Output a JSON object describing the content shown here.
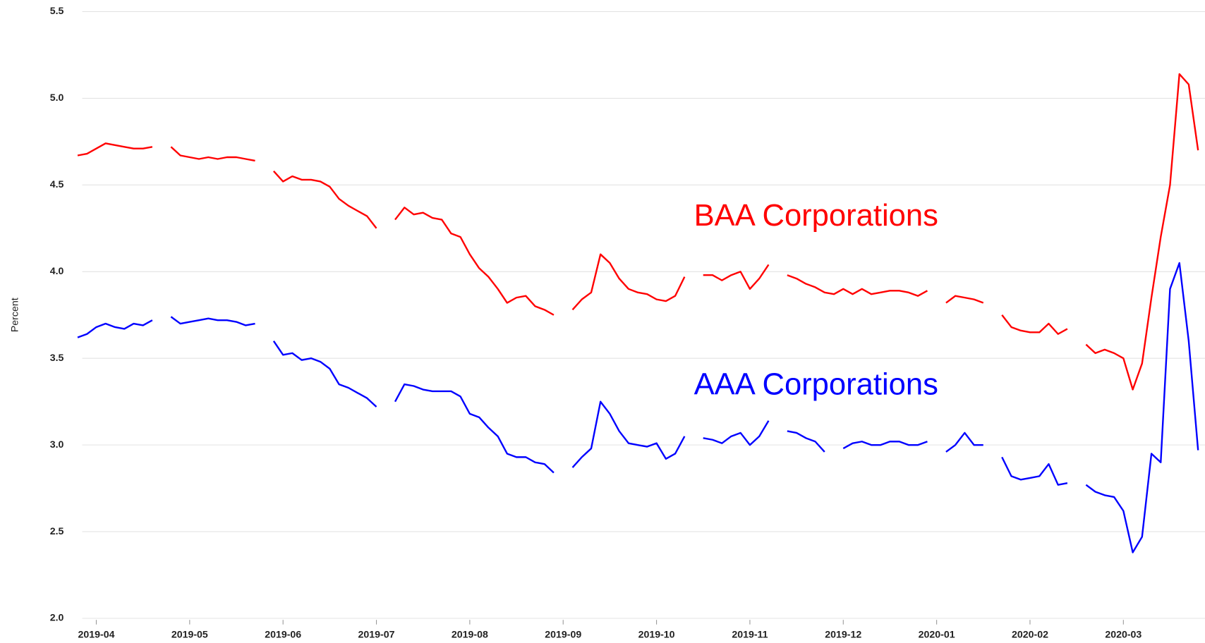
{
  "chart_data": {
    "type": "line",
    "y_label": "Percent",
    "categories": [
      null,
      null,
      "2019-04",
      null,
      null,
      null,
      null,
      null,
      null,
      null,
      null,
      null,
      "2019-05",
      null,
      null,
      null,
      null,
      null,
      null,
      null,
      null,
      null,
      "2019-06",
      null,
      null,
      null,
      null,
      null,
      null,
      null,
      null,
      null,
      "2019-07",
      null,
      null,
      null,
      null,
      null,
      null,
      null,
      null,
      null,
      "2019-08",
      null,
      null,
      null,
      null,
      null,
      null,
      null,
      null,
      null,
      "2019-09",
      null,
      null,
      null,
      null,
      null,
      null,
      null,
      null,
      null,
      "2019-10",
      null,
      null,
      null,
      null,
      null,
      null,
      null,
      null,
      null,
      "2019-11",
      null,
      null,
      null,
      null,
      null,
      null,
      null,
      null,
      null,
      "2019-12",
      null,
      null,
      null,
      null,
      null,
      null,
      null,
      null,
      null,
      "2020-01",
      null,
      null,
      null,
      null,
      null,
      null,
      null,
      null,
      null,
      "2020-02",
      null,
      null,
      null,
      null,
      null,
      null,
      null,
      null,
      null,
      "2020-03",
      null,
      null,
      null,
      null,
      null,
      null,
      null,
      null
    ],
    "series": [
      {
        "name": "BAA Corporations",
        "color": "#ff0000",
        "values": [
          4.67,
          4.68,
          4.71,
          4.74,
          4.73,
          4.72,
          4.71,
          4.71,
          4.72,
          null,
          4.72,
          4.67,
          4.66,
          4.65,
          4.66,
          4.65,
          4.66,
          4.66,
          4.65,
          4.64,
          null,
          4.58,
          4.52,
          4.55,
          4.53,
          4.53,
          4.52,
          4.49,
          4.42,
          4.38,
          4.35,
          4.32,
          4.25,
          null,
          4.3,
          4.37,
          4.33,
          4.34,
          4.31,
          4.3,
          4.22,
          4.2,
          4.1,
          4.02,
          3.97,
          3.9,
          3.82,
          3.85,
          3.86,
          3.8,
          3.78,
          3.75,
          null,
          3.78,
          3.84,
          3.88,
          4.1,
          4.05,
          3.96,
          3.9,
          3.88,
          3.87,
          3.84,
          3.83,
          3.86,
          3.97,
          null,
          3.98,
          3.98,
          3.95,
          3.98,
          4.0,
          3.9,
          3.96,
          4.04,
          null,
          3.98,
          3.96,
          3.93,
          3.91,
          3.88,
          3.87,
          3.9,
          3.87,
          3.9,
          3.87,
          3.88,
          3.89,
          3.89,
          3.88,
          3.86,
          3.89,
          null,
          3.82,
          3.86,
          3.85,
          3.84,
          3.82,
          null,
          3.75,
          3.68,
          3.66,
          3.65,
          3.65,
          3.7,
          3.64,
          3.67,
          null,
          3.58,
          3.53,
          3.55,
          3.53,
          3.5,
          3.32,
          3.47,
          3.85,
          4.2,
          4.5,
          5.14,
          5.08,
          4.7
        ]
      },
      {
        "name": "AAA Corporations",
        "color": "#0000ff",
        "values": [
          3.62,
          3.64,
          3.68,
          3.7,
          3.68,
          3.67,
          3.7,
          3.69,
          3.72,
          null,
          3.74,
          3.7,
          3.71,
          3.72,
          3.73,
          3.72,
          3.72,
          3.71,
          3.69,
          3.7,
          null,
          3.6,
          3.52,
          3.53,
          3.49,
          3.5,
          3.48,
          3.44,
          3.35,
          3.33,
          3.3,
          3.27,
          3.22,
          null,
          3.25,
          3.35,
          3.34,
          3.32,
          3.31,
          3.31,
          3.31,
          3.28,
          3.18,
          3.16,
          3.1,
          3.05,
          2.95,
          2.93,
          2.93,
          2.9,
          2.89,
          2.84,
          null,
          2.87,
          2.93,
          2.98,
          3.25,
          3.18,
          3.08,
          3.01,
          3.0,
          2.99,
          3.01,
          2.92,
          2.95,
          3.05,
          null,
          3.04,
          3.03,
          3.01,
          3.05,
          3.07,
          3.0,
          3.05,
          3.14,
          null,
          3.08,
          3.07,
          3.04,
          3.02,
          2.96,
          null,
          2.98,
          3.01,
          3.02,
          3.0,
          3.0,
          3.02,
          3.02,
          3.0,
          3.0,
          3.02,
          null,
          2.96,
          3.0,
          3.07,
          3.0,
          3.0,
          null,
          2.93,
          2.82,
          2.8,
          2.81,
          2.82,
          2.89,
          2.77,
          2.78,
          null,
          2.77,
          2.73,
          2.71,
          2.7,
          2.62,
          2.38,
          2.47,
          2.95,
          2.9,
          3.9,
          4.05,
          3.6,
          2.97
        ]
      }
    ],
    "ylim": [
      2.0,
      5.5
    ],
    "yticks": [
      {
        "value": 2,
        "label": "2.0"
      },
      2.5,
      {
        "value": 3,
        "label": "3.0"
      },
      3.5,
      {
        "value": 4,
        "label": "4.0"
      },
      4.5,
      {
        "value": 5,
        "label": "5.0"
      },
      5.5
    ],
    "grid": true
  }
}
